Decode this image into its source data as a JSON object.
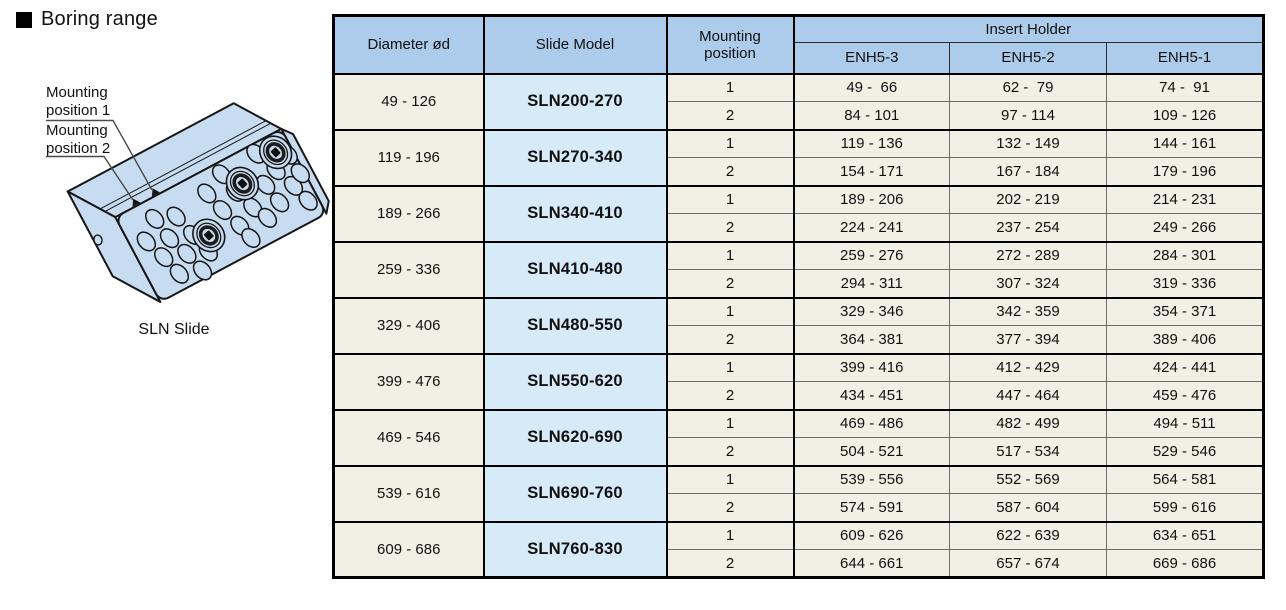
{
  "title": {
    "text": "Boring range"
  },
  "figure": {
    "labels": [
      "Mounting\nposition 1",
      "Mounting\nposition 2"
    ],
    "caption": "SLN Slide"
  },
  "colors": {
    "header_blue": "#adcbea",
    "model_blue": "#d6eaf7",
    "row_beige": "#f2efe4",
    "block_blue": "#c7dcf0",
    "border_black": "#000000",
    "grid_gray": "#6e6e6e"
  },
  "table": {
    "header": {
      "diameter": "Diameter ød",
      "slide_model": "Slide Model",
      "mounting_position": "Mounting\nposition",
      "insert_holder": "Insert Holder",
      "insert_columns": [
        "ENH5-3",
        "ENH5-2",
        "ENH5-1"
      ]
    },
    "groups": [
      {
        "diameter": "49 - 126",
        "model": "SLN200-270",
        "rows": [
          {
            "position": "1",
            "values": [
              "49 -  66",
              "62 -  79",
              "74 -  91"
            ]
          },
          {
            "position": "2",
            "values": [
              "84 - 101",
              "97 - 114",
              "109 - 126"
            ]
          }
        ]
      },
      {
        "diameter": "119 - 196",
        "model": "SLN270-340",
        "rows": [
          {
            "position": "1",
            "values": [
              "119 - 136",
              "132 - 149",
              "144 - 161"
            ]
          },
          {
            "position": "2",
            "values": [
              "154 - 171",
              "167 - 184",
              "179 - 196"
            ]
          }
        ]
      },
      {
        "diameter": "189 - 266",
        "model": "SLN340-410",
        "rows": [
          {
            "position": "1",
            "values": [
              "189 - 206",
              "202 - 219",
              "214 - 231"
            ]
          },
          {
            "position": "2",
            "values": [
              "224 - 241",
              "237 - 254",
              "249 - 266"
            ]
          }
        ]
      },
      {
        "diameter": "259 - 336",
        "model": "SLN410-480",
        "rows": [
          {
            "position": "1",
            "values": [
              "259 - 276",
              "272 - 289",
              "284 - 301"
            ]
          },
          {
            "position": "2",
            "values": [
              "294 - 311",
              "307 - 324",
              "319 - 336"
            ]
          }
        ]
      },
      {
        "diameter": "329 - 406",
        "model": "SLN480-550",
        "rows": [
          {
            "position": "1",
            "values": [
              "329 - 346",
              "342 - 359",
              "354 - 371"
            ]
          },
          {
            "position": "2",
            "values": [
              "364 - 381",
              "377 - 394",
              "389 - 406"
            ]
          }
        ]
      },
      {
        "diameter": "399 - 476",
        "model": "SLN550-620",
        "rows": [
          {
            "position": "1",
            "values": [
              "399 - 416",
              "412 - 429",
              "424 - 441"
            ]
          },
          {
            "position": "2",
            "values": [
              "434 - 451",
              "447 - 464",
              "459 - 476"
            ]
          }
        ]
      },
      {
        "diameter": "469 - 546",
        "model": "SLN620-690",
        "rows": [
          {
            "position": "1",
            "values": [
              "469 - 486",
              "482 - 499",
              "494 - 511"
            ]
          },
          {
            "position": "2",
            "values": [
              "504 - 521",
              "517 - 534",
              "529 - 546"
            ]
          }
        ]
      },
      {
        "diameter": "539 - 616",
        "model": "SLN690-760",
        "rows": [
          {
            "position": "1",
            "values": [
              "539 - 556",
              "552 - 569",
              "564 - 581"
            ]
          },
          {
            "position": "2",
            "values": [
              "574 - 591",
              "587 - 604",
              "599 - 616"
            ]
          }
        ]
      },
      {
        "diameter": "609 - 686",
        "model": "SLN760-830",
        "rows": [
          {
            "position": "1",
            "values": [
              "609 - 626",
              "622 - 639",
              "634 - 651"
            ]
          },
          {
            "position": "2",
            "values": [
              "644 - 661",
              "657 - 674",
              "669 - 686"
            ]
          }
        ]
      }
    ]
  }
}
